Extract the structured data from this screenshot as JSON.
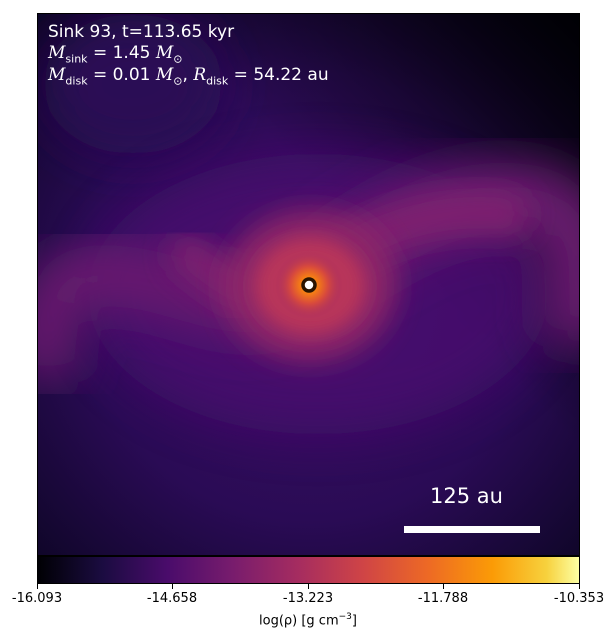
{
  "info": {
    "line1": "Sink 93, t=113.65 kyr",
    "m_sink_sym": "M",
    "m_sink_sub": "sink",
    "m_sink_val": " = 1.45 ",
    "m_unit": "M",
    "m_unit_sub": "⊙",
    "m_disk_sym": "M",
    "m_disk_sub": "disk",
    "m_disk_val": " = 0.01 ",
    "sep": ", ",
    "r_disk_sym": "R",
    "r_disk_sub": "disk",
    "r_disk_val": " = 54.22 au"
  },
  "scalebar": {
    "label": "125 au"
  },
  "colorbar": {
    "ticks": [
      "-16.093",
      "-14.658",
      "-13.223",
      "-11.788",
      "-10.353"
    ],
    "label_prefix": "log(ρ) [g cm",
    "label_exp": "−3",
    "label_suffix": "]",
    "colormap": "inferno"
  },
  "colors": {
    "sink_fill": "#ffffff",
    "sink_ring": "#2b1400"
  }
}
